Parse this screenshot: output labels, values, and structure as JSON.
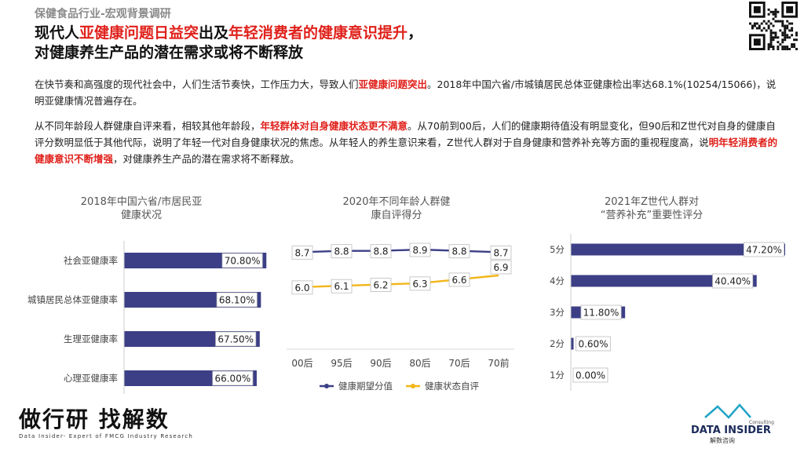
{
  "header": {
    "section_tag": "保健食品行业-宏观背景调研",
    "title_line1": [
      {
        "text": "现代人",
        "red": false
      },
      {
        "text": "亚健康问题日益突",
        "red": true
      },
      {
        "text": "出及",
        "red": false
      },
      {
        "text": "年轻消费者的健康意识提升",
        "red": true
      },
      {
        "text": "，",
        "red": false
      }
    ],
    "title_line2": "对健康养生产品的潜在需求或将不断释放"
  },
  "body": {
    "p1": [
      {
        "text": "在快节奏和高强度的现代社会中，人们生活节奏快，工作压力大，导致人们",
        "hl": false
      },
      {
        "text": "亚健康问题突出",
        "hl": true
      },
      {
        "text": "。2018年中国六省/市城镇居民总体亚健康检出率达68.1%(10254/15066)，说明亚健康情况普遍存在。",
        "hl": false
      }
    ],
    "p2": [
      {
        "text": "从不同年龄段人群健康自评来看，相较其他年龄段，",
        "hl": false
      },
      {
        "text": "年轻群体对自身健康状态更不满意",
        "hl": true
      },
      {
        "text": "。从70前到00后，人们的健康期待值没有明显变化，但90后和Z世代对自身的健康自评分数明显低于其他代际，说明了年轻一代对自身健康状况的焦虑。从年轻人的养生意识来看，Z世代人群对于自身健康和营养补充等方面的重视程度高，说",
        "hl": false
      },
      {
        "text": "明年轻消费者的健康意识不断增强",
        "hl": true
      },
      {
        "text": "，对健康养生产品的潜在需求将不断释放。",
        "hl": false
      }
    ]
  },
  "chart_data": [
    {
      "type": "bar",
      "orientation": "horizontal",
      "title_line1": "2018年中国六省/市居民亚",
      "title_line2": "健康状况",
      "categories": [
        "社会亚健康率",
        "城镇居民总体亚健康率",
        "生理亚健康率",
        "心理亚健康率"
      ],
      "values": [
        70.8,
        68.1,
        67.5,
        66.0
      ],
      "labels": [
        "70.80%",
        "68.10%",
        "67.50%",
        "66.00%"
      ],
      "xlim": [
        0,
        75
      ],
      "color": "#3c3f86"
    },
    {
      "type": "line",
      "title_line1": "2020年不同年龄人群健",
      "title_line2": "康自评得分",
      "categories": [
        "00后",
        "95后",
        "90后",
        "80后",
        "70后",
        "70前"
      ],
      "series": [
        {
          "name": "健康期望分值",
          "values": [
            8.7,
            8.8,
            8.8,
            8.9,
            8.8,
            8.7
          ],
          "labels": [
            "8.7",
            "8.8",
            "8.8",
            "8.9",
            "8.8",
            "8.7"
          ],
          "color": "#3c3f86"
        },
        {
          "name": "健康状态自评",
          "values": [
            6.0,
            6.1,
            6.2,
            6.3,
            6.6,
            6.9
          ],
          "labels": [
            "6.0",
            "6.1",
            "6.2",
            "6.3",
            "6.6",
            "6.9"
          ],
          "color": "#f2b619"
        }
      ],
      "legend": "bottom"
    },
    {
      "type": "bar",
      "orientation": "horizontal",
      "title_line1": "2021年Z世代人群对",
      "title_line2": "“营养补充”重要性评分",
      "categories": [
        "5分",
        "4分",
        "3分",
        "2分",
        "1分"
      ],
      "values": [
        47.2,
        40.4,
        11.8,
        0.6,
        0.0
      ],
      "labels": [
        "47.20%",
        "40.40%",
        "11.80%",
        "0.60%",
        "0.00%"
      ],
      "xlim": [
        0,
        50
      ],
      "color": "#3c3f86"
    }
  ],
  "footer": {
    "logo_cn": "做行研 找解数",
    "logo_en": "Data Insider- Expert of FMCG Industry Research",
    "brand_name": "DATA INSIDER",
    "brand_sub": "Consulting",
    "brand_cn": "解数咨询"
  }
}
